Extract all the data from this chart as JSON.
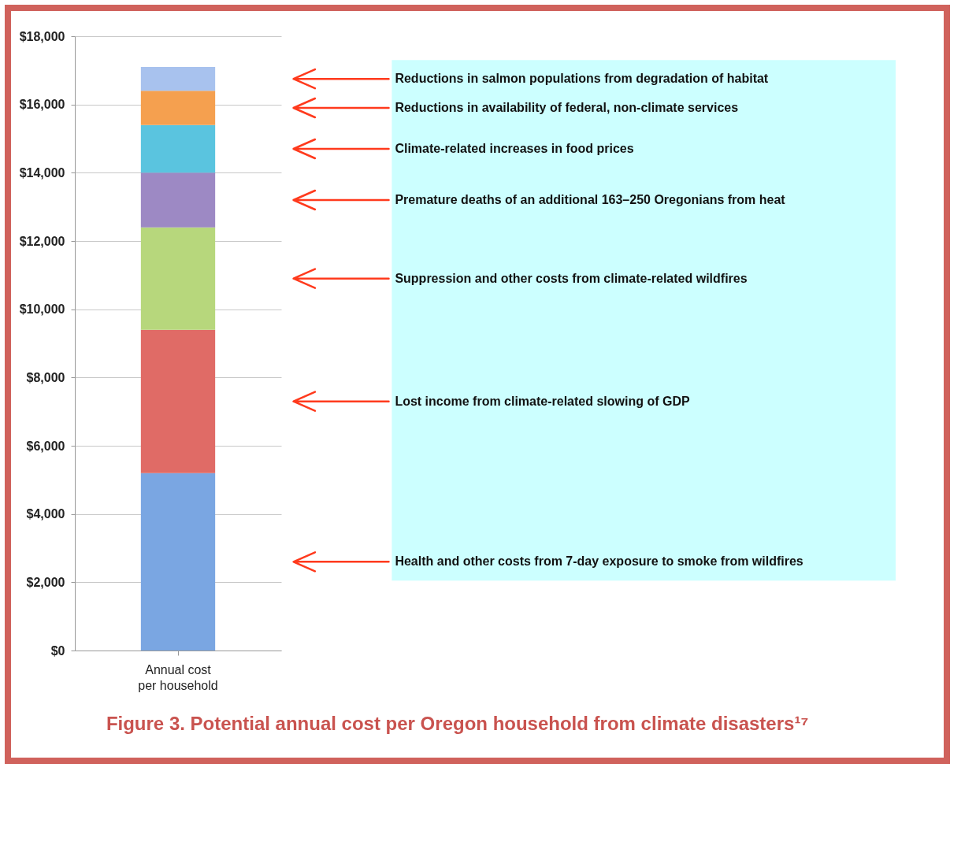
{
  "chart_data": {
    "type": "bar",
    "stacked": true,
    "title": "Figure 3.   Potential annual cost per Oregon household from climate disasters¹⁷",
    "categories": [
      "Annual cost per household"
    ],
    "series": [
      {
        "name": "Health and other costs from 7-day exposure to smoke from wildfires",
        "color": "#7aa6e2",
        "values": [
          5200
        ]
      },
      {
        "name": "Lost income from climate-related slowing of GDP",
        "color": "#e06b66",
        "values": [
          4200
        ]
      },
      {
        "name": "Suppression and other costs from climate-related wildfires",
        "color": "#b7d77c",
        "values": [
          3000
        ]
      },
      {
        "name": "Premature deaths of an additional 163–250 Oregonians from heat",
        "color": "#9d89c4",
        "values": [
          1600
        ]
      },
      {
        "name": "Climate-related increases in food prices",
        "color": "#5ac4df",
        "values": [
          1400
        ]
      },
      {
        "name": "Reductions in availability of federal, non-climate services",
        "color": "#f5a04f",
        "values": [
          1000
        ]
      },
      {
        "name": "Reductions in salmon populations from degradation of habitat",
        "color": "#a8c2ee",
        "values": [
          700
        ]
      }
    ],
    "ylim": [
      0,
      18000
    ],
    "yticks": [
      {
        "value": 0,
        "label": "$0"
      },
      {
        "value": 2000,
        "label": "$2,000"
      },
      {
        "value": 4000,
        "label": "$4,000"
      },
      {
        "value": 6000,
        "label": "$6,000"
      },
      {
        "value": 8000,
        "label": "$8,000"
      },
      {
        "value": 10000,
        "label": "$10,000"
      },
      {
        "value": 12000,
        "label": "$12,000"
      },
      {
        "value": 14000,
        "label": "$14,000"
      },
      {
        "value": 16000,
        "label": "$16,000"
      },
      {
        "value": 18000,
        "label": "$18,000"
      }
    ],
    "grid": "y"
  }
}
